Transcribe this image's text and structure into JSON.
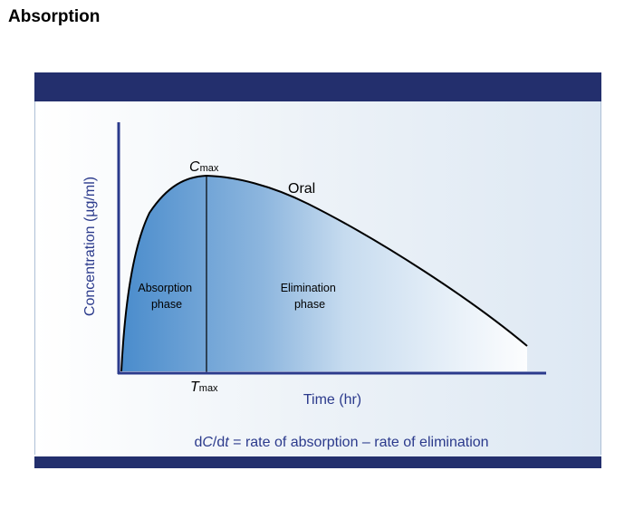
{
  "title": "Absorption",
  "diagram": {
    "y_axis_label": "Concentration (µg/ml)",
    "x_axis_label": "Time (hr)",
    "cmax_main": "C",
    "cmax_sub": "max",
    "tmax_main": "T",
    "tmax_sub": "max",
    "curve_label": "Oral",
    "absorption_line1": "Absorption",
    "absorption_line2": "phase",
    "elimination_line1": "Elimination",
    "elimination_line2": "phase",
    "formula_prefix": "d",
    "formula_c": "C",
    "formula_slash": "/d",
    "formula_t": "t",
    "formula_rest": " = rate of absorption – rate of elimination"
  },
  "colors": {
    "frame_bar": "#232f6d",
    "axis": "#2b3a8c",
    "fill_dark": "#4a8ccc",
    "fill_light": "#ffffff",
    "label_blue": "#2b3a8c"
  }
}
